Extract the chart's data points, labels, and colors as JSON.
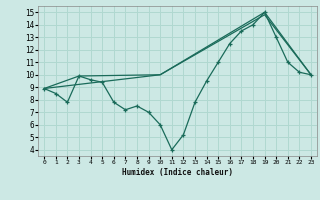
{
  "title": "",
  "xlabel": "Humidex (Indice chaleur)",
  "bg_color": "#cce8e4",
  "grid_color": "#b0d8d0",
  "line_color": "#1a6b5a",
  "xlim": [
    -0.5,
    23.5
  ],
  "ylim": [
    3.5,
    15.5
  ],
  "yticks": [
    4,
    5,
    6,
    7,
    8,
    9,
    10,
    11,
    12,
    13,
    14,
    15
  ],
  "xticks": [
    0,
    1,
    2,
    3,
    4,
    5,
    6,
    7,
    8,
    9,
    10,
    11,
    12,
    13,
    14,
    15,
    16,
    17,
    18,
    19,
    20,
    21,
    22,
    23
  ],
  "series1_x": [
    0,
    1,
    2,
    3,
    4,
    5,
    6,
    7,
    8,
    9,
    10,
    11,
    12,
    13,
    14,
    15,
    16,
    17,
    18,
    19,
    20,
    21,
    22,
    23
  ],
  "series1_y": [
    8.9,
    8.5,
    7.8,
    9.9,
    9.6,
    9.4,
    7.8,
    7.2,
    7.5,
    7.0,
    6.0,
    4.0,
    5.2,
    7.8,
    9.5,
    11.0,
    12.5,
    13.5,
    14.0,
    15.0,
    13.0,
    11.0,
    10.2,
    10.0
  ],
  "series2_x": [
    0,
    3,
    10,
    19,
    23
  ],
  "series2_y": [
    8.9,
    9.9,
    10.0,
    15.0,
    10.0
  ],
  "series3_x": [
    0,
    10,
    19,
    23
  ],
  "series3_y": [
    8.9,
    10.0,
    14.8,
    10.0
  ]
}
